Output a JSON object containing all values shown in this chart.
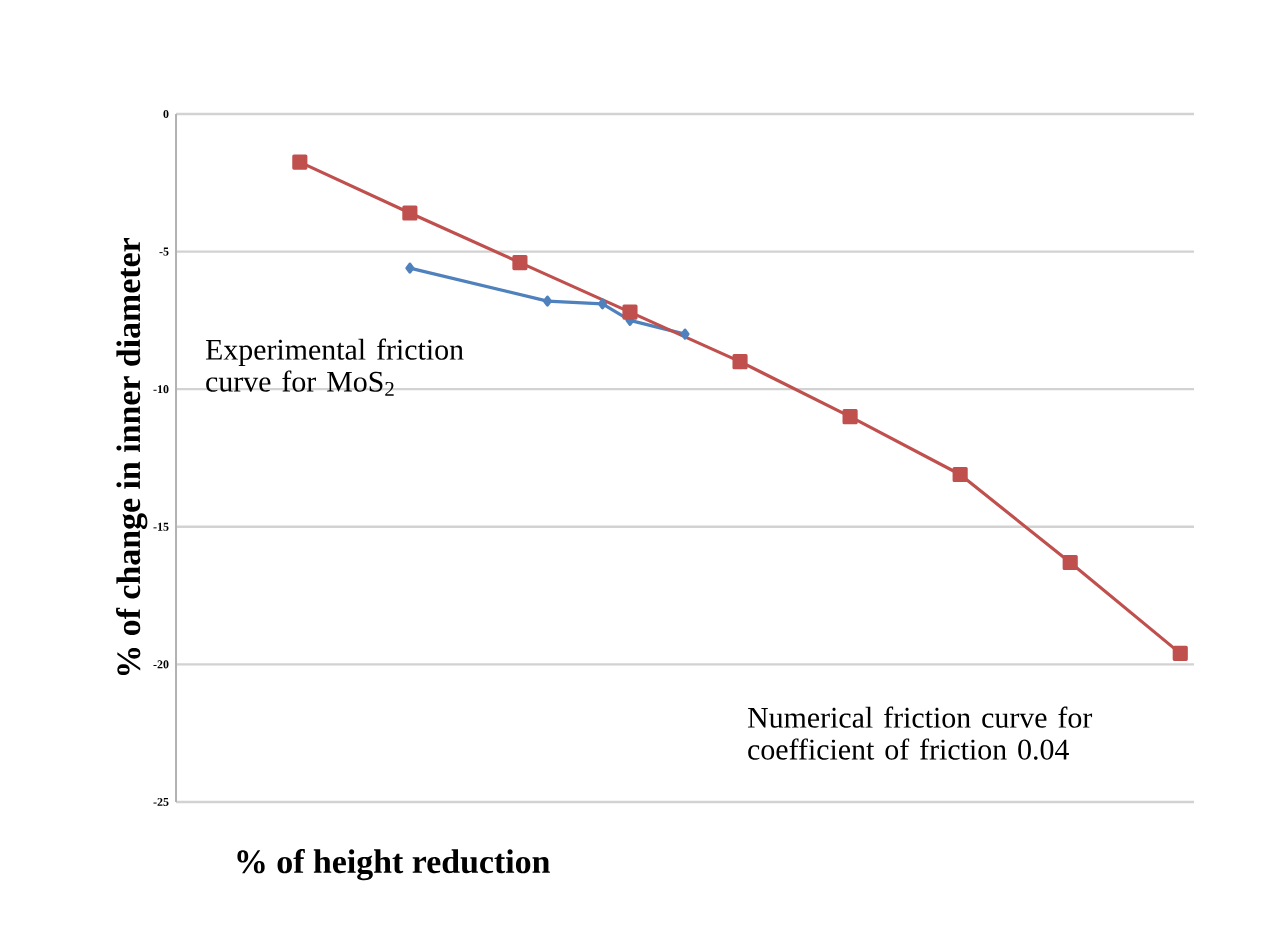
{
  "chart_data": {
    "type": "line",
    "xlabel": "% of height reduction",
    "ylabel": "% of change in inner diameter",
    "categories": [
      null,
      null,
      null,
      null,
      null,
      null,
      null,
      null,
      null,
      null,
      null,
      null,
      null,
      null,
      null,
      null,
      null,
      null,
      null,
      null,
      null,
      null,
      null,
      null,
      null,
      null,
      null,
      null,
      null,
      null,
      null,
      null,
      null,
      null,
      null,
      null,
      null
    ],
    "ylim": [
      -25,
      0
    ],
    "yticks": [
      -25,
      -20,
      -15,
      -10,
      -5,
      0
    ],
    "grid": "y",
    "annotations": [
      "Experimental friction curve for MoS$_{2}$",
      "Numerical friction curve for coefficient of friction 0.04"
    ],
    "series": [
      {
        "color": "#4f81bd",
        "marker": "diamond",
        "values": [
          null,
          null,
          null,
          null,
          null,
          null,
          null,
          null,
          -5.6,
          null,
          null,
          null,
          null,
          -6.8,
          null,
          -6.9,
          -7.5,
          null,
          -8.0,
          null,
          null,
          null,
          null,
          null,
          null,
          null,
          null,
          null,
          null,
          null,
          null,
          null,
          null,
          null,
          null,
          null,
          null
        ]
      },
      {
        "color": "#c0504d",
        "marker": "square",
        "values": [
          null,
          null,
          null,
          null,
          -1.75,
          null,
          null,
          null,
          -3.6,
          null,
          null,
          null,
          -5.4,
          null,
          null,
          null,
          -7.2,
          null,
          null,
          null,
          -9.0,
          null,
          null,
          null,
          -11.0,
          null,
          null,
          null,
          -13.1,
          null,
          null,
          null,
          -16.3,
          null,
          null,
          null,
          -19.6
        ]
      }
    ]
  }
}
